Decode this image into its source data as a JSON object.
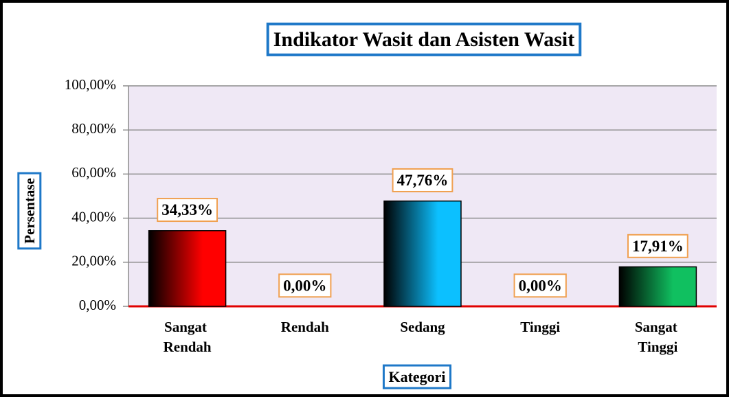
{
  "chart_data": {
    "type": "bar",
    "title": "Indikator Wasit dan Asisten Wasit",
    "x_label": "Kategori",
    "y_label": "Persentase",
    "categories": [
      "Sangat Rendah",
      "Rendah",
      "Sedang",
      "Tinggi",
      "Sangat Tinggi"
    ],
    "values": [
      34.33,
      0,
      47.76,
      0,
      17.91
    ],
    "value_labels": [
      "34,33%",
      "0,00%",
      "47,76%",
      "0,00%",
      "17,91%"
    ],
    "colors": [
      "#ff0000",
      "#ff0000",
      "#0cc0ff",
      "#0cc0ff",
      "#10c060"
    ],
    "ylim": [
      0,
      100
    ],
    "yticks": [
      {
        "value": 0,
        "label": "0,00%"
      },
      {
        "value": 20,
        "label": "20,00%"
      },
      {
        "value": 40,
        "label": "40,00%"
      },
      {
        "value": 60,
        "label": "60,00%"
      },
      {
        "value": 80,
        "label": "80,00%"
      },
      {
        "value": 100,
        "label": "100,00%"
      }
    ],
    "grid": true
  }
}
